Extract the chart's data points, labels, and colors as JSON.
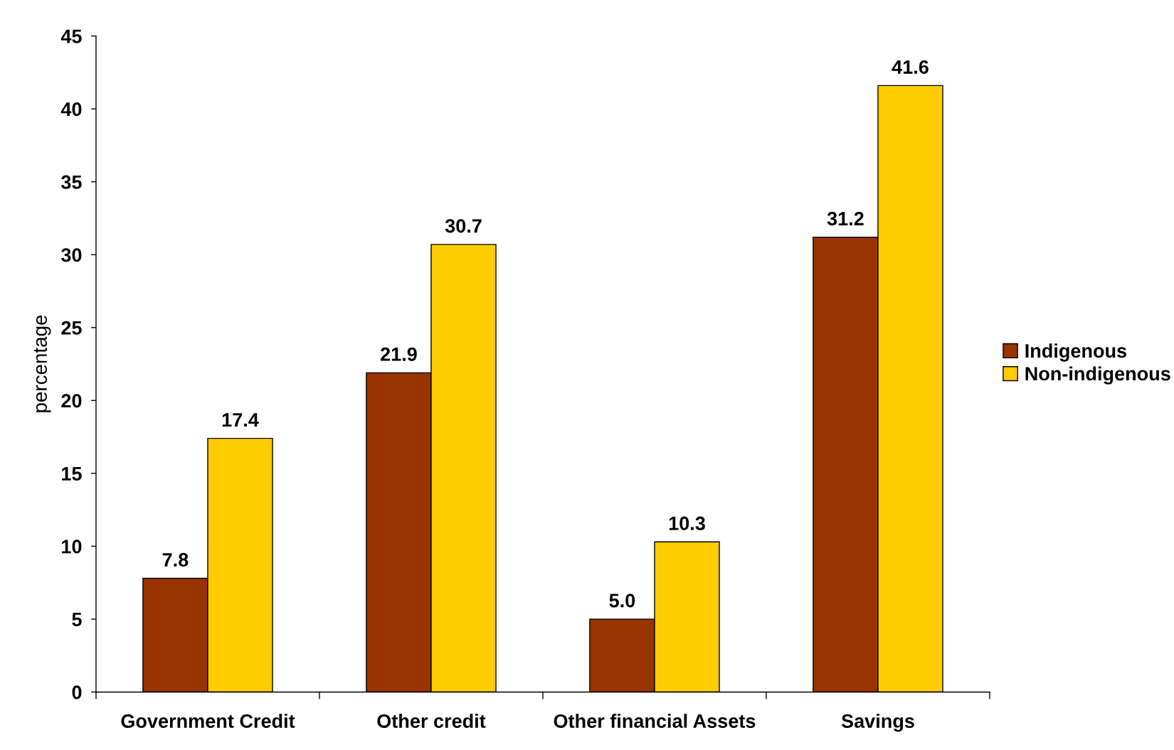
{
  "chart_data": {
    "type": "bar",
    "categories": [
      "Government Credit",
      "Other credit",
      "Other financial Assets",
      "Savings"
    ],
    "ylabel": "percentage",
    "series": [
      {
        "name": "Indigenous",
        "color": "#993300",
        "values": [
          7.8,
          21.9,
          5.0,
          31.2
        ],
        "value_labels": [
          "7.8",
          "21.9",
          "5.0",
          "31.2"
        ]
      },
      {
        "name": "Non-indigenous",
        "color": "#ffcc00",
        "values": [
          17.4,
          30.7,
          10.3,
          41.6
        ],
        "value_labels": [
          "17.4",
          "30.7",
          "10.3",
          "41.6"
        ]
      }
    ],
    "ylim": [
      0,
      45
    ],
    "yticks": [
      0,
      5,
      10,
      15,
      20,
      25,
      30,
      35,
      40,
      45
    ],
    "grid": false,
    "legend": "right"
  }
}
